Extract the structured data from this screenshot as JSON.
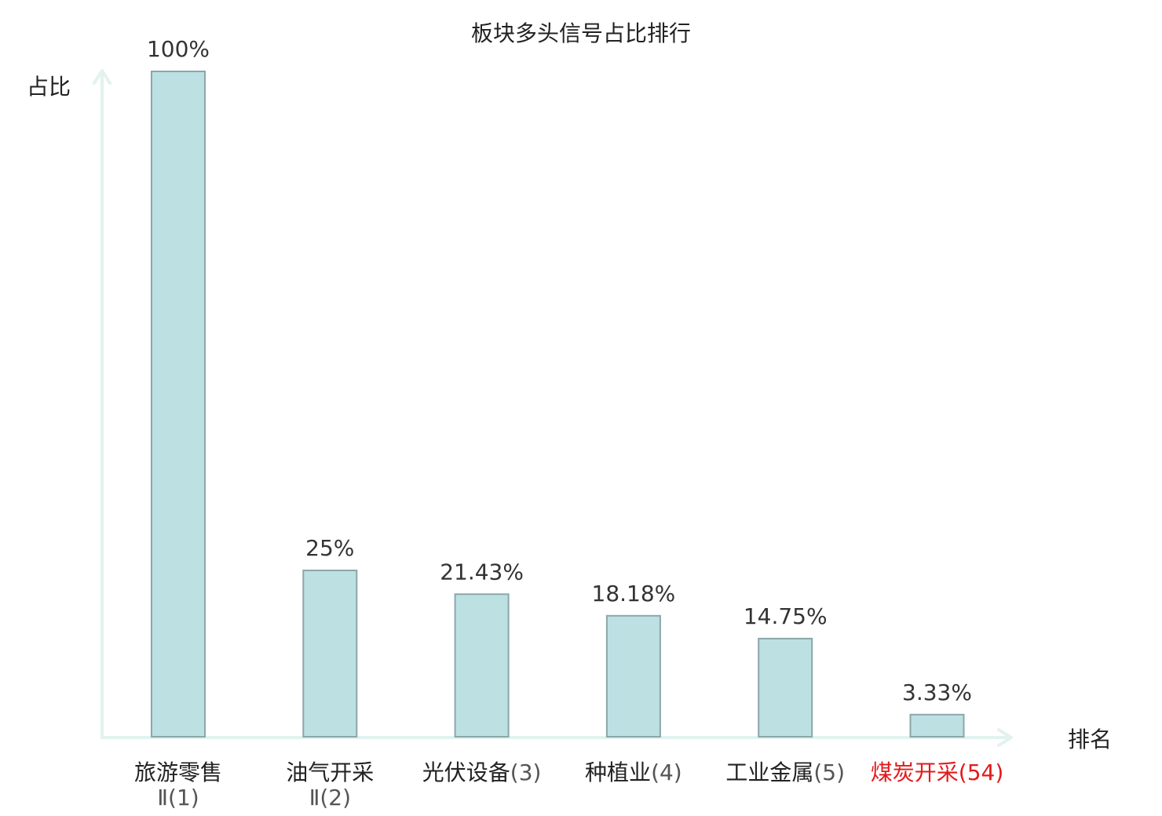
{
  "chart_data": {
    "type": "bar",
    "title": "板块多头信号占比排行",
    "ylabel": "占比",
    "xlabel": "排名",
    "ylim": [
      0,
      100
    ],
    "grid": false,
    "categories": [
      {
        "name": "旅游零售",
        "rank_line": "Ⅱ(1)",
        "rank": "",
        "highlight": false
      },
      {
        "name": "油气开采",
        "rank_line": "Ⅱ(2)",
        "rank": "",
        "highlight": false
      },
      {
        "name": "光伏设备",
        "rank_line": "",
        "rank": "(3)",
        "highlight": false
      },
      {
        "name": "种植业",
        "rank_line": "",
        "rank": "(4)",
        "highlight": false
      },
      {
        "name": "工业金属",
        "rank_line": "",
        "rank": "(5)",
        "highlight": false
      },
      {
        "name": "煤炭开采",
        "rank_line": "",
        "rank": "(54)",
        "highlight": true
      }
    ],
    "values": [
      100,
      25,
      21.43,
      18.18,
      14.75,
      3.33
    ],
    "value_labels": [
      "100%",
      "25%",
      "21.43%",
      "18.18%",
      "14.75%",
      "3.33%"
    ],
    "colors": {
      "bar_fill": "#bde0e3",
      "bar_stroke": "#8aa7ab",
      "axis": "#e2f2ef",
      "highlight": "#e31a1c"
    }
  }
}
